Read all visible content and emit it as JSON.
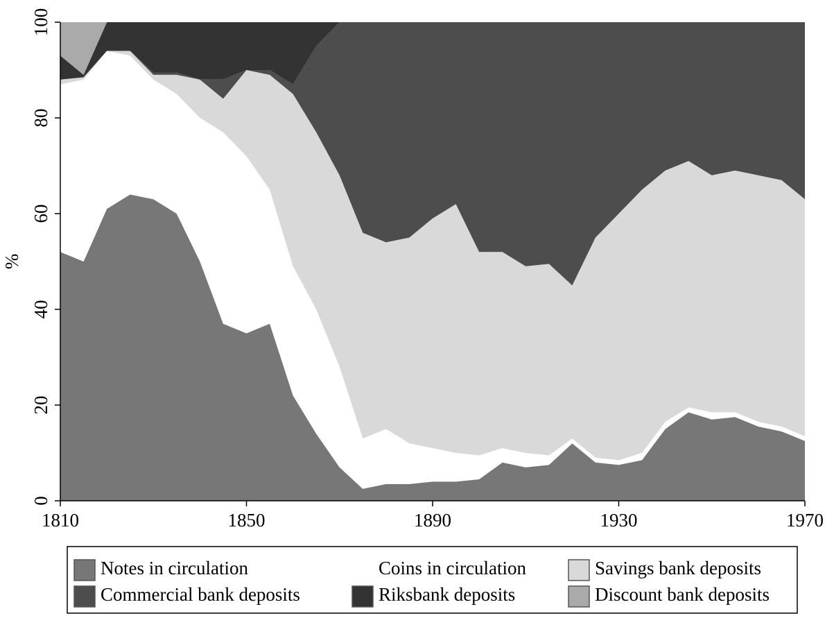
{
  "chart_data": {
    "type": "stacked_area",
    "ylabel": "%",
    "x": [
      1810,
      1815,
      1820,
      1825,
      1830,
      1835,
      1840,
      1845,
      1850,
      1855,
      1860,
      1865,
      1870,
      1875,
      1880,
      1885,
      1890,
      1895,
      1900,
      1905,
      1910,
      1915,
      1920,
      1925,
      1930,
      1935,
      1940,
      1945,
      1950,
      1955,
      1960,
      1965,
      1970
    ],
    "series": [
      {
        "name": "Notes in circulation",
        "color": "#777777",
        "values": [
          52,
          50,
          61,
          64,
          63,
          60,
          50,
          37,
          35,
          37,
          22,
          14,
          7,
          2.5,
          3.5,
          3.5,
          4,
          4,
          4.5,
          8,
          7,
          7.5,
          12,
          8,
          7.5,
          8.5,
          15,
          18.5,
          17,
          17.5,
          15.5,
          14.5,
          12.5
        ]
      },
      {
        "name": "Coins in circulation",
        "color": "#ffffff",
        "values": [
          35,
          38,
          33,
          29,
          25,
          25,
          30,
          40,
          37,
          28,
          27,
          26,
          21,
          10.5,
          11.5,
          8.5,
          7,
          6,
          5,
          3,
          3,
          2,
          1,
          1,
          1,
          1.5,
          1.5,
          1,
          1.5,
          1,
          1,
          1,
          1
        ]
      },
      {
        "name": "Savings bank deposits",
        "color": "#d9d9d9",
        "values": [
          1,
          0.5,
          0,
          1,
          1,
          4,
          8,
          7,
          18,
          24,
          36,
          37,
          40,
          43,
          39,
          43,
          48,
          52,
          42.5,
          41,
          39,
          40,
          32,
          46,
          51.5,
          55,
          52.5,
          51.5,
          49.5,
          50.5,
          51.5,
          51.5,
          49.5
        ]
      },
      {
        "name": "Commercial bank deposits",
        "color": "#4d4d4d",
        "values": [
          0,
          0,
          0,
          0,
          0.5,
          0.5,
          0,
          4,
          0,
          1,
          2,
          18,
          32,
          44,
          46,
          45,
          41,
          38,
          48,
          48,
          51,
          50.5,
          55,
          45,
          40,
          35,
          31,
          29,
          32,
          31,
          32,
          33,
          37
        ]
      },
      {
        "name": "Riksbank deposits",
        "color": "#333333",
        "values": [
          5,
          0.5,
          6,
          6,
          10.5,
          10.5,
          12,
          12,
          10,
          10,
          13,
          5,
          0,
          0,
          0,
          0,
          0,
          0,
          0,
          0,
          0,
          0,
          0,
          0,
          0,
          0,
          0,
          0,
          0,
          0,
          0,
          0,
          0
        ]
      },
      {
        "name": "Discount bank deposits",
        "color": "#aaaaaa",
        "values": [
          7,
          11,
          0,
          0,
          0,
          0,
          0,
          0,
          0,
          0,
          0,
          0,
          0,
          0,
          0,
          0,
          0,
          0,
          0,
          0,
          0,
          0,
          0,
          0,
          0,
          0,
          0,
          0,
          0,
          0,
          0,
          0,
          0
        ]
      }
    ],
    "xlim": [
      1810,
      1970
    ],
    "xticks": [
      1810,
      1850,
      1890,
      1930,
      1970
    ],
    "ylim": [
      0,
      100
    ],
    "yticks": [
      0,
      20,
      40,
      60,
      80,
      100
    ],
    "legend": "bottom"
  }
}
